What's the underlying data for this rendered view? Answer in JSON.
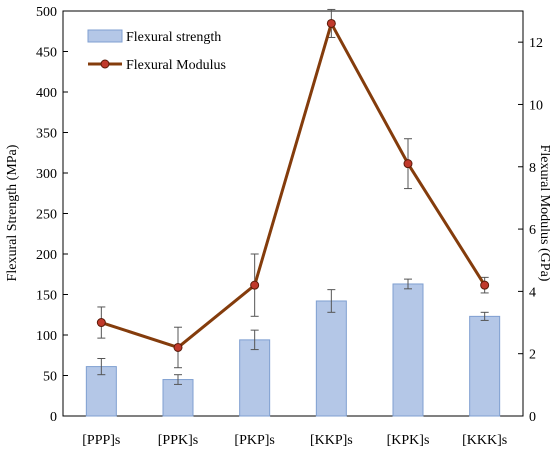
{
  "chart_data": {
    "type": "bar",
    "categories": [
      "[PPP]s",
      "[PPK]s",
      "[PKP]s",
      "[KKP]s",
      "[KPK]s",
      "[KKK]s"
    ],
    "series": [
      {
        "name": "Flexural strength",
        "type": "bar",
        "axis": "left",
        "values": [
          61,
          45,
          94,
          142,
          163,
          123
        ],
        "errors": [
          10,
          6,
          12,
          14,
          6,
          5
        ],
        "color": "#b4c7e7",
        "edge_color": "#7f9fd1"
      },
      {
        "name": "Flexural Modulus",
        "type": "line",
        "axis": "right",
        "values": [
          3.0,
          2.2,
          4.2,
          12.6,
          8.1,
          4.2
        ],
        "errors": [
          0.5,
          0.65,
          1.0,
          0.45,
          0.8,
          0.25
        ],
        "color": "#843c0c",
        "marker_color": "#c0392b"
      }
    ],
    "ylabel": "Flexural Strength (MPa)",
    "ylim": [
      0,
      500
    ],
    "yticks": [
      0,
      50,
      100,
      150,
      200,
      250,
      300,
      350,
      400,
      450,
      500
    ],
    "y2label": "Flexural Modulus (GPa)",
    "y2lim": [
      0,
      13
    ],
    "y2ticks": [
      0,
      2,
      4,
      6,
      8,
      10,
      12
    ],
    "legend_position": "top-left",
    "grid": false
  }
}
